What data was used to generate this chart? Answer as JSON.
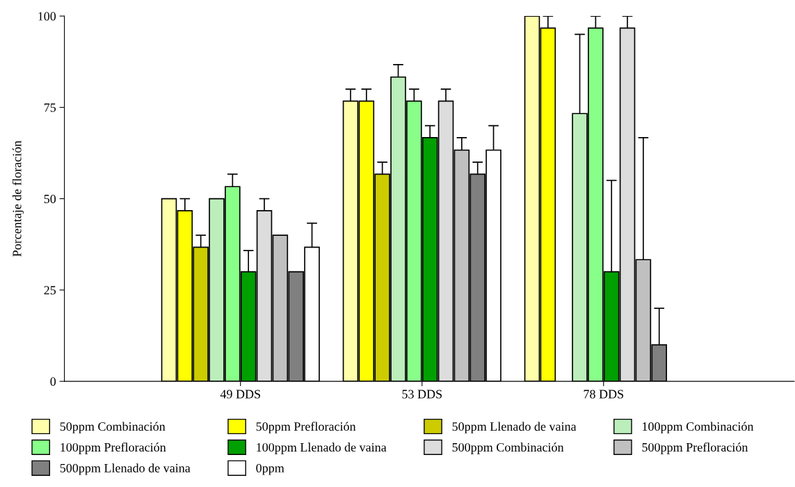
{
  "chart_data": {
    "type": "bar",
    "ylabel": "Porcentaje de floración",
    "categories": [
      "49 DDS",
      "53 DDS",
      "78 DDS"
    ],
    "ylim": [
      0,
      100
    ],
    "yticks": [
      0,
      25,
      50,
      75,
      100
    ],
    "grid": false,
    "legend": "bottom",
    "series": [
      {
        "name": "50ppm Combinación",
        "color": "#ffffaa",
        "values": [
          50,
          76.7,
          100
        ],
        "errors": [
          null,
          [
            76.7,
            80
          ],
          null
        ]
      },
      {
        "name": "50ppm Prefloración",
        "color": "#ffff00",
        "values": [
          46.7,
          76.7,
          96.7
        ],
        "errors": [
          [
            46.7,
            50
          ],
          [
            76.7,
            80
          ],
          [
            96.7,
            100
          ]
        ]
      },
      {
        "name": "50ppm Llenado de vaina",
        "color": "#cccc00",
        "values": [
          36.7,
          56.7,
          null
        ],
        "errors": [
          [
            36.7,
            40
          ],
          [
            56.7,
            60
          ],
          null
        ]
      },
      {
        "name": "100ppm Combinación",
        "color": "#bbeebb",
        "values": [
          50,
          83.3,
          73.3
        ],
        "errors": [
          null,
          [
            83.3,
            86.7
          ],
          [
            73.3,
            95
          ]
        ]
      },
      {
        "name": "100ppm Prefloración",
        "color": "#88ff88",
        "values": [
          53.3,
          76.7,
          96.7
        ],
        "errors": [
          [
            53.3,
            56.7
          ],
          [
            76.7,
            80
          ],
          [
            96.7,
            100
          ]
        ]
      },
      {
        "name": "100ppm Llenado de vaina",
        "color": "#00a000",
        "values": [
          30,
          66.7,
          30
        ],
        "errors": [
          [
            30,
            35.8
          ],
          [
            66.7,
            70
          ],
          [
            30,
            55
          ]
        ]
      },
      {
        "name": "500ppm Combinación",
        "color": "#dddddd",
        "values": [
          46.7,
          76.7,
          96.7
        ],
        "errors": [
          [
            46.7,
            50
          ],
          [
            76.7,
            80
          ],
          [
            96.7,
            100
          ]
        ]
      },
      {
        "name": "500ppm Prefloración",
        "color": "#c0c0c0",
        "values": [
          40,
          63.3,
          33.3
        ],
        "errors": [
          null,
          [
            63.3,
            66.7
          ],
          [
            33.3,
            66.7
          ]
        ]
      },
      {
        "name": "500ppm Llenado de vaina",
        "color": "#808080",
        "values": [
          30,
          56.7,
          10
        ],
        "errors": [
          null,
          [
            56.7,
            60
          ],
          [
            10,
            20
          ]
        ]
      },
      {
        "name": "0ppm",
        "color": "#ffffff",
        "values": [
          36.7,
          63.3,
          null
        ],
        "errors": [
          [
            36.7,
            43.3
          ],
          [
            63.3,
            70
          ],
          null
        ]
      }
    ]
  }
}
